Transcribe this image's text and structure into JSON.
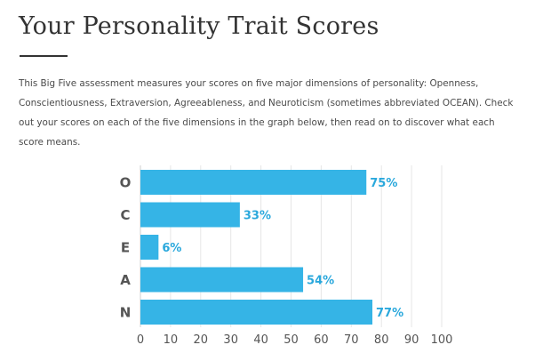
{
  "header": {
    "title": "Your Personality Trait Scores"
  },
  "intro": {
    "text": "This Big Five assessment measures your scores on five major dimensions of personality: Openness, Conscientiousness, Extraversion, Agreeableness, and Neuroticism (sometimes abbreviated OCEAN). Check out your scores on each of the five dimensions in the graph below, then read on to discover what each score means."
  },
  "colors": {
    "bar": "#35b4e6",
    "value_label": "#2aa8dc",
    "gridline": "#e6e6e6",
    "axis": "#cfcfcf"
  },
  "chart_data": {
    "type": "bar",
    "orientation": "horizontal",
    "title": "",
    "xlabel": "",
    "ylabel": "",
    "categories": [
      "O",
      "C",
      "E",
      "A",
      "N"
    ],
    "values": [
      75,
      33,
      6,
      54,
      77
    ],
    "value_labels": [
      "75%",
      "33%",
      "6%",
      "54%",
      "77%"
    ],
    "xlim": [
      0,
      100
    ],
    "x_ticks": [
      0,
      10,
      20,
      30,
      40,
      50,
      60,
      70,
      80,
      90,
      100
    ],
    "grid": "vertical",
    "legend": "none"
  }
}
